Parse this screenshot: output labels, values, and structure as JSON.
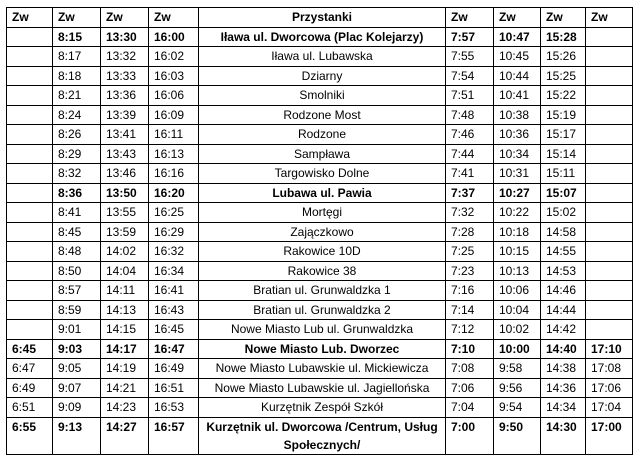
{
  "headers": [
    "Zw",
    "Zw",
    "Zw",
    "Zw",
    "Przystanki",
    "Zw",
    "Zw",
    "Zw",
    "Zw"
  ],
  "rows": [
    {
      "bold": true,
      "cells": [
        "",
        "8:15",
        "13:30",
        "16:00",
        "Iława ul. Dworcowa (Plac Kolejarzy)",
        "7:57",
        "10:47",
        "15:28",
        ""
      ]
    },
    {
      "bold": false,
      "cells": [
        "",
        "8:17",
        "13:32",
        "16:02",
        "Iława ul. Lubawska",
        "7:55",
        "10:45",
        "15:26",
        ""
      ]
    },
    {
      "bold": false,
      "cells": [
        "",
        "8:18",
        "13:33",
        "16:03",
        "Dziarny",
        "7:54",
        "10:44",
        "15:25",
        ""
      ]
    },
    {
      "bold": false,
      "cells": [
        "",
        "8:21",
        "13:36",
        "16:06",
        "Smolniki",
        "7:51",
        "10:41",
        "15:22",
        ""
      ]
    },
    {
      "bold": false,
      "cells": [
        "",
        "8:24",
        "13:39",
        "16:09",
        "Rodzone Most",
        "7:48",
        "10:38",
        "15:19",
        ""
      ]
    },
    {
      "bold": false,
      "cells": [
        "",
        "8:26",
        "13:41",
        "16:11",
        "Rodzone",
        "7:46",
        "10:36",
        "15:17",
        ""
      ]
    },
    {
      "bold": false,
      "cells": [
        "",
        "8:29",
        "13:43",
        "16:13",
        "Sampława",
        "7:44",
        "10:34",
        "15:14",
        ""
      ]
    },
    {
      "bold": false,
      "cells": [
        "",
        "8:32",
        "13:46",
        "16:16",
        "Targowisko Dolne",
        "7:41",
        "10:31",
        "15:11",
        ""
      ]
    },
    {
      "bold": true,
      "cells": [
        "",
        "8:36",
        "13:50",
        "16:20",
        "Lubawa ul. Pawia",
        "7:37",
        "10:27",
        "15:07",
        ""
      ]
    },
    {
      "bold": false,
      "cells": [
        "",
        "8:41",
        "13:55",
        "16:25",
        "Mortęgi",
        "7:32",
        "10:22",
        "15:02",
        ""
      ]
    },
    {
      "bold": false,
      "cells": [
        "",
        "8:45",
        "13:59",
        "16:29",
        "Zajączkowo",
        "7:28",
        "10:18",
        "14:58",
        ""
      ]
    },
    {
      "bold": false,
      "cells": [
        "",
        "8:48",
        "14:02",
        "16:32",
        "Rakowice 10D",
        "7:25",
        "10:15",
        "14:55",
        ""
      ]
    },
    {
      "bold": false,
      "cells": [
        "",
        "8:50",
        "14:04",
        "16:34",
        "Rakowice 38",
        "7:23",
        "10:13",
        "14:53",
        ""
      ]
    },
    {
      "bold": false,
      "cells": [
        "",
        "8:57",
        "14:11",
        "16:41",
        "Bratian ul. Grunwaldzka 1",
        "7:16",
        "10:06",
        "14:46",
        ""
      ]
    },
    {
      "bold": false,
      "cells": [
        "",
        "8:59",
        "14:13",
        "16:43",
        "Bratian ul. Grunwaldzka 2",
        "7:14",
        "10:04",
        "14:44",
        ""
      ]
    },
    {
      "bold": false,
      "cells": [
        "",
        "9:01",
        "14:15",
        "16:45",
        "Nowe Miasto Lub ul. Grunwaldzka",
        "7:12",
        "10:02",
        "14:42",
        ""
      ]
    },
    {
      "bold": true,
      "cells": [
        "6:45",
        "9:03",
        "14:17",
        "16:47",
        "Nowe Miasto Lub. Dworzec",
        "7:10",
        "10:00",
        "14:40",
        "17:10"
      ]
    },
    {
      "bold": false,
      "cells": [
        "6:47",
        "9:05",
        "14:19",
        "16:49",
        "Nowe Miasto Lubawskie ul. Mickiewicza",
        "7:08",
        "9:58",
        "14:38",
        "17:08"
      ]
    },
    {
      "bold": false,
      "cells": [
        "6:49",
        "9:07",
        "14:21",
        "16:51",
        "Nowe Miasto Lubawskie ul. Jagiellońska",
        "7:06",
        "9:56",
        "14:36",
        "17:06"
      ]
    },
    {
      "bold": false,
      "cells": [
        "6:51",
        "9:09",
        "14:23",
        "16:53",
        "Kurzętnik Zespół Szkół",
        "7:04",
        "9:54",
        "14:34",
        "17:04"
      ]
    },
    {
      "bold": true,
      "cells": [
        "6:55",
        "9:13",
        "14:27",
        "16:57",
        "Kurzętnik ul. Dworcowa /Centrum, Usług Społecznych/",
        "7:00",
        "9:50",
        "14:30",
        "17:00"
      ]
    }
  ]
}
